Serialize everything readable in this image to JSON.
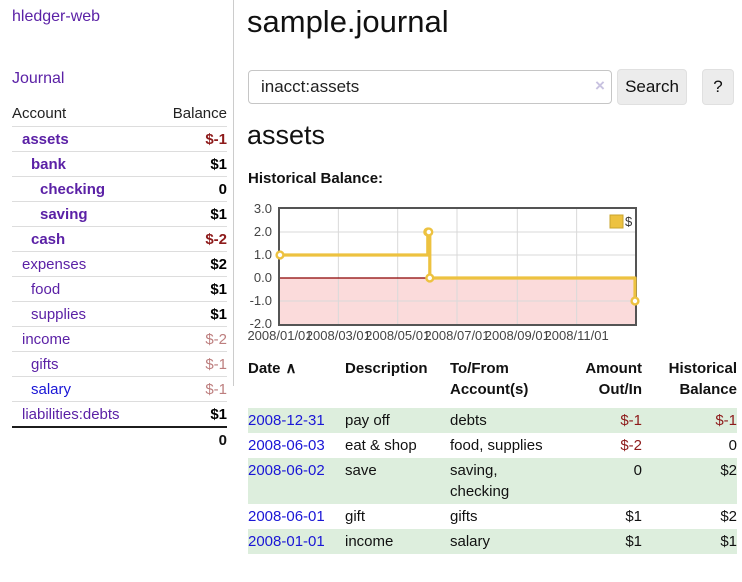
{
  "colors": {
    "link_purple": "#5b21a6",
    "link_blue": "#1a16d6",
    "negative_strong": "#8d1a1a",
    "negative_soft": "#bd7e7e",
    "row_shade_green": "#ddeedd",
    "series_gold": "#edc240",
    "negative_region_pink": "#fbdbdb",
    "zero_line_red": "#8b0000"
  },
  "app": {
    "brand": "hledger-web",
    "nav_journal_label": "Journal"
  },
  "sidebar": {
    "header": {
      "account_label": "Account",
      "balance_label": "Balance"
    },
    "accounts": [
      {
        "name": "assets",
        "balance": "$-1",
        "indent": 1,
        "bold": true,
        "negative": "strong",
        "link": "purple"
      },
      {
        "name": "bank",
        "balance": "$1",
        "indent": 2,
        "bold": true,
        "negative": "none",
        "link": "purple"
      },
      {
        "name": "checking",
        "balance": "0",
        "indent": 3,
        "bold": true,
        "negative": "none",
        "link": "purple"
      },
      {
        "name": "saving",
        "balance": "$1",
        "indent": 3,
        "bold": true,
        "negative": "none",
        "link": "purple"
      },
      {
        "name": "cash",
        "balance": "$-2",
        "indent": 2,
        "bold": true,
        "negative": "strong",
        "link": "purple"
      },
      {
        "name": "expenses",
        "balance": "$2",
        "indent": 1,
        "bold": false,
        "negative": "none",
        "link": "purple"
      },
      {
        "name": "food",
        "balance": "$1",
        "indent": 2,
        "bold": false,
        "negative": "none",
        "link": "purple"
      },
      {
        "name": "supplies",
        "balance": "$1",
        "indent": 2,
        "bold": false,
        "negative": "none",
        "link": "purple"
      },
      {
        "name": "income",
        "balance": "$-2",
        "indent": 1,
        "bold": false,
        "negative": "soft",
        "link": "purple"
      },
      {
        "name": "gifts",
        "balance": "$-1",
        "indent": 2,
        "bold": false,
        "negative": "soft",
        "link": "purple"
      },
      {
        "name": "salary",
        "balance": "$-1",
        "indent": 2,
        "bold": false,
        "negative": "soft",
        "link": "blue"
      },
      {
        "name": "liabilities:debts",
        "balance": "$1",
        "indent": 1,
        "bold": false,
        "negative": "none",
        "link": "purple"
      }
    ],
    "total_balance": "0"
  },
  "main": {
    "title": "sample.journal",
    "search": {
      "value": "inacct:assets",
      "clear_icon": "×",
      "search_button_label": "Search",
      "help_button_label": "?"
    },
    "account_heading": "assets",
    "chart_title": "Historical Balance:"
  },
  "chart_data": {
    "type": "line",
    "title": "Historical Balance",
    "steps": true,
    "series": [
      {
        "name": "$",
        "color": "#edc240",
        "points": [
          [
            "2008-01-01",
            1
          ],
          [
            "2008-06-01",
            2
          ],
          [
            "2008-06-02",
            2
          ],
          [
            "2008-06-03",
            0
          ],
          [
            "2008-12-31",
            -1
          ]
        ]
      }
    ],
    "x_range": [
      "2008-01-01",
      "2008-12-31"
    ],
    "ylim": [
      -2,
      3
    ],
    "x_tick_labels": [
      "2008/01/01",
      "2008/03/01",
      "2008/05/01",
      "2008/07/01",
      "2008/09/01",
      "2008/11/01"
    ],
    "y_tick_labels": [
      "3.0",
      "2.0",
      "1.0",
      "0.0",
      "-1.0",
      "-2.0"
    ],
    "legend": {
      "label": "$",
      "position": "top-right"
    },
    "grid": true,
    "negative_region_color": "#fbdbdb",
    "zero_line_color": "#8b0000",
    "grid_line_color": "#d9d9d9",
    "axis_text_color": "#444444"
  },
  "register": {
    "sort_indicator": "∧",
    "columns": [
      "Date",
      "Description",
      "To/From Account(s)",
      "Amount Out/In",
      "Historical Balance"
    ],
    "rows": [
      {
        "date": "2008-12-31",
        "description": "pay off",
        "accounts": "debts",
        "amount": "$-1",
        "amount_negative": true,
        "balance": "$-1",
        "balance_negative": true
      },
      {
        "date": "2008-06-03",
        "description": "eat & shop",
        "accounts": "food, supplies",
        "amount": "$-2",
        "amount_negative": true,
        "balance": "0",
        "balance_negative": false
      },
      {
        "date": "2008-06-02",
        "description": "save",
        "accounts": "saving, checking",
        "amount": "0",
        "amount_negative": false,
        "balance": "$2",
        "balance_negative": false
      },
      {
        "date": "2008-06-01",
        "description": "gift",
        "accounts": "gifts",
        "amount": "$1",
        "amount_negative": false,
        "balance": "$2",
        "balance_negative": false
      },
      {
        "date": "2008-01-01",
        "description": "income",
        "accounts": "salary",
        "amount": "$1",
        "amount_negative": false,
        "balance": "$1",
        "balance_negative": false
      }
    ]
  }
}
